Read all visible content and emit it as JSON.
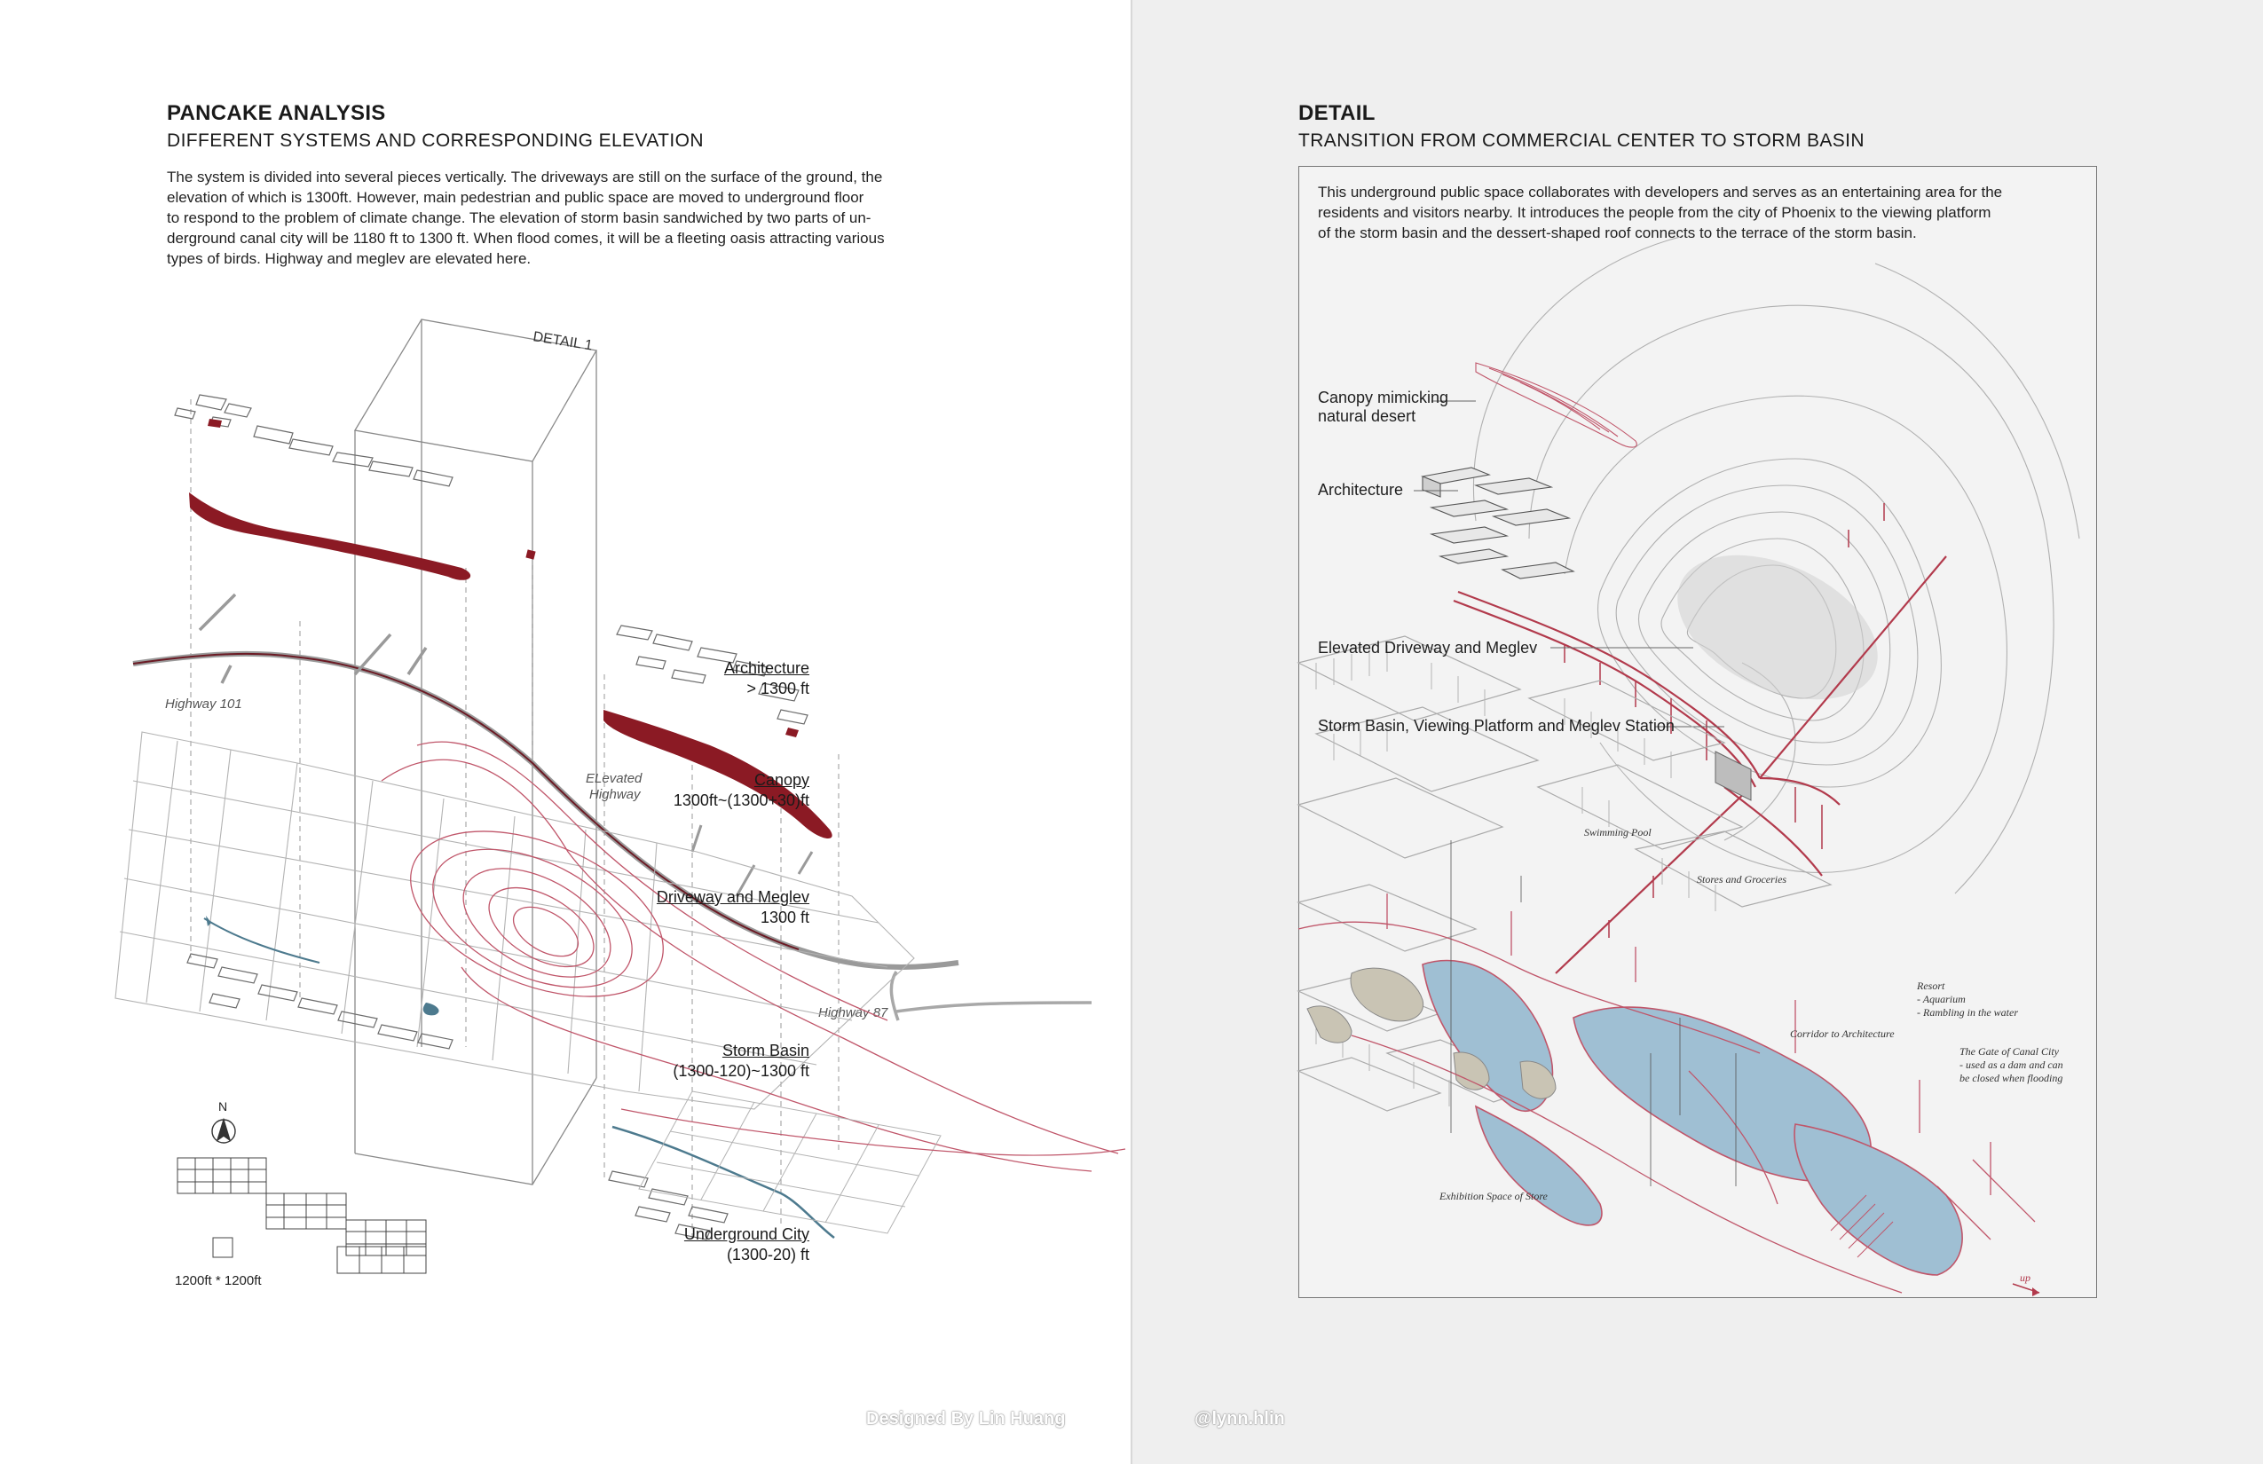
{
  "left": {
    "title": "PANCAKE ANALYSIS",
    "subtitle": "DIFFERENT SYSTEMS AND CORRESPONDING ELEVATION",
    "body": [
      "The system is divided into several pieces vertically. The driveways are still on the surface of the ground, the",
      "elevation of which is 1300ft. However, main pedestrian and public space are moved to underground floor",
      "to respond to the problem of climate change.  The elevation of storm basin sandwiched by two parts of un-",
      "derground canal city will be 1180 ft to 1300 ft. When flood comes, it will be a fleeting oasis attracting various",
      "types of birds. Highway and meglev are elevated here."
    ],
    "detail_box_label": "DETAIL 1",
    "map_labels": {
      "highway_101": "Highway 101",
      "elevated_highway_1": "ELevated",
      "elevated_highway_2": "Highway",
      "highway_87": "Highway 87"
    },
    "layers": [
      {
        "name": "Architecture",
        "elevation": "> 1300 ft"
      },
      {
        "name": "Canopy",
        "elevation": "1300ft~(1300+30)ft"
      },
      {
        "name": "Driveway and Meglev",
        "elevation": "1300 ft"
      },
      {
        "name": "Storm Basin",
        "elevation": "(1300-120)~1300 ft"
      },
      {
        "name": "Underground City",
        "elevation": "(1300-20) ft"
      }
    ],
    "north_label": "N",
    "scale_label": "1200ft * 1200ft"
  },
  "right": {
    "title": "DETAIL",
    "subtitle": "TRANSITION FROM COMMERCIAL CENTER TO STORM BASIN",
    "intro": [
      "This underground public space collaborates with developers and serves as an entertaining area for the",
      "residents and visitors nearby. It introduces the people from the city of Phoenix to the viewing platform",
      "of the storm basin and the dessert-shaped roof connects to the terrace of the storm basin."
    ],
    "annotations": {
      "canopy_1": "Canopy mimicking",
      "canopy_2": "natural desert",
      "architecture": "Architecture",
      "elevated": "Elevated Driveway and Meglev",
      "storm_basin": "Storm Basin, Viewing Platform and Meglev Station"
    },
    "notes": {
      "swimming_pool": "Swimming Pool",
      "stores": "Stores and Groceries",
      "resort_1": "Resort",
      "resort_2": "- Aquarium",
      "resort_3": "- Rambling in the water",
      "corridor": "Corridor to Architecture",
      "gate_1": "The Gate of  Canal City",
      "gate_2": "- used as a dam and can",
      "gate_3": "be closed when flooding",
      "exhibition": "Exhibition Space of  Store",
      "up": "up"
    }
  },
  "credits": {
    "designer": "Designed By Lin Huang",
    "handle": "@lynn.hlin"
  },
  "colors": {
    "accent_red": "#8b1a24",
    "line_red": "#c0566a",
    "water_blue": "#9fbfd3",
    "line_grey": "#7a7a7a"
  }
}
